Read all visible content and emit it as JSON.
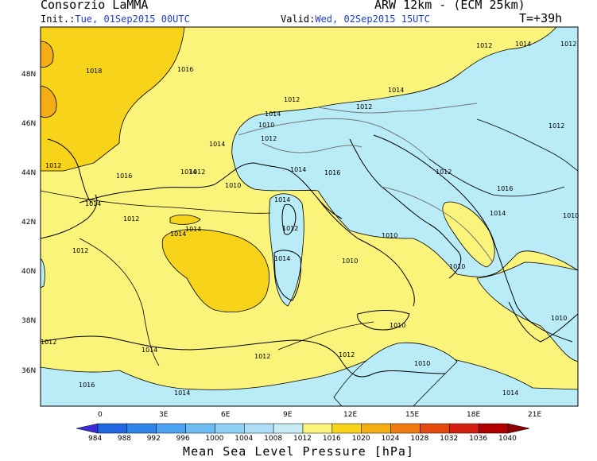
{
  "header": {
    "org": "Consorzio LaMMA",
    "model": "ARW 12km - (ECM 25km)",
    "init_label": "Init.:",
    "init_value": "Tue, 01Sep2015 00UTC",
    "valid_label": "Valid:",
    "valid_value": "Wed, 02Sep2015 15UTC",
    "lead": "T=+39h"
  },
  "axes": {
    "lat_labels": [
      "48N",
      "46N",
      "44N",
      "42N",
      "40N",
      "38N",
      "36N"
    ],
    "lon_labels": [
      "0",
      "3E",
      "6E",
      "9E",
      "12E",
      "15E",
      "18E",
      "21E"
    ]
  },
  "isobars": [
    "1018",
    "1016",
    "1014",
    "1012",
    "1010",
    "1012",
    "1014",
    "1016",
    "1012",
    "1014",
    "1010",
    "1012",
    "1014",
    "1016",
    "1014",
    "1012",
    "1014",
    "1014",
    "1014",
    "1012",
    "1012",
    "1014",
    "1010",
    "1010",
    "1010",
    "1010",
    "1010",
    "1012",
    "1012",
    "1014",
    "1012",
    "1016",
    "1014",
    "1014",
    "1012",
    "1014",
    "1012",
    "1012",
    "1014",
    "1016",
    "1012",
    "1014",
    "1012",
    "1010",
    "1010"
  ],
  "colorbar": {
    "levels": [
      "984",
      "988",
      "992",
      "996",
      "1000",
      "1004",
      "1008",
      "1012",
      "1016",
      "1020",
      "1024",
      "1028",
      "1032",
      "1036",
      "1040"
    ],
    "colors": [
      "#3a2bd6",
      "#1f66e0",
      "#2f86e8",
      "#4aa3f0",
      "#6ebcf4",
      "#8fd0f6",
      "#acdff7",
      "#c6ecf6",
      "#faf47a",
      "#f7d31a",
      "#f5ad14",
      "#f07a10",
      "#e44a10",
      "#d42010",
      "#b00000",
      "#8c0000"
    ],
    "title": "Mean Sea Level Pressure [hPa]"
  },
  "colors": {
    "land_outline": "#000000",
    "border": "#777777",
    "yellow_main": "#faf47a",
    "orange_high": "#f7d31a",
    "blue_low": "#b9ecf6"
  }
}
